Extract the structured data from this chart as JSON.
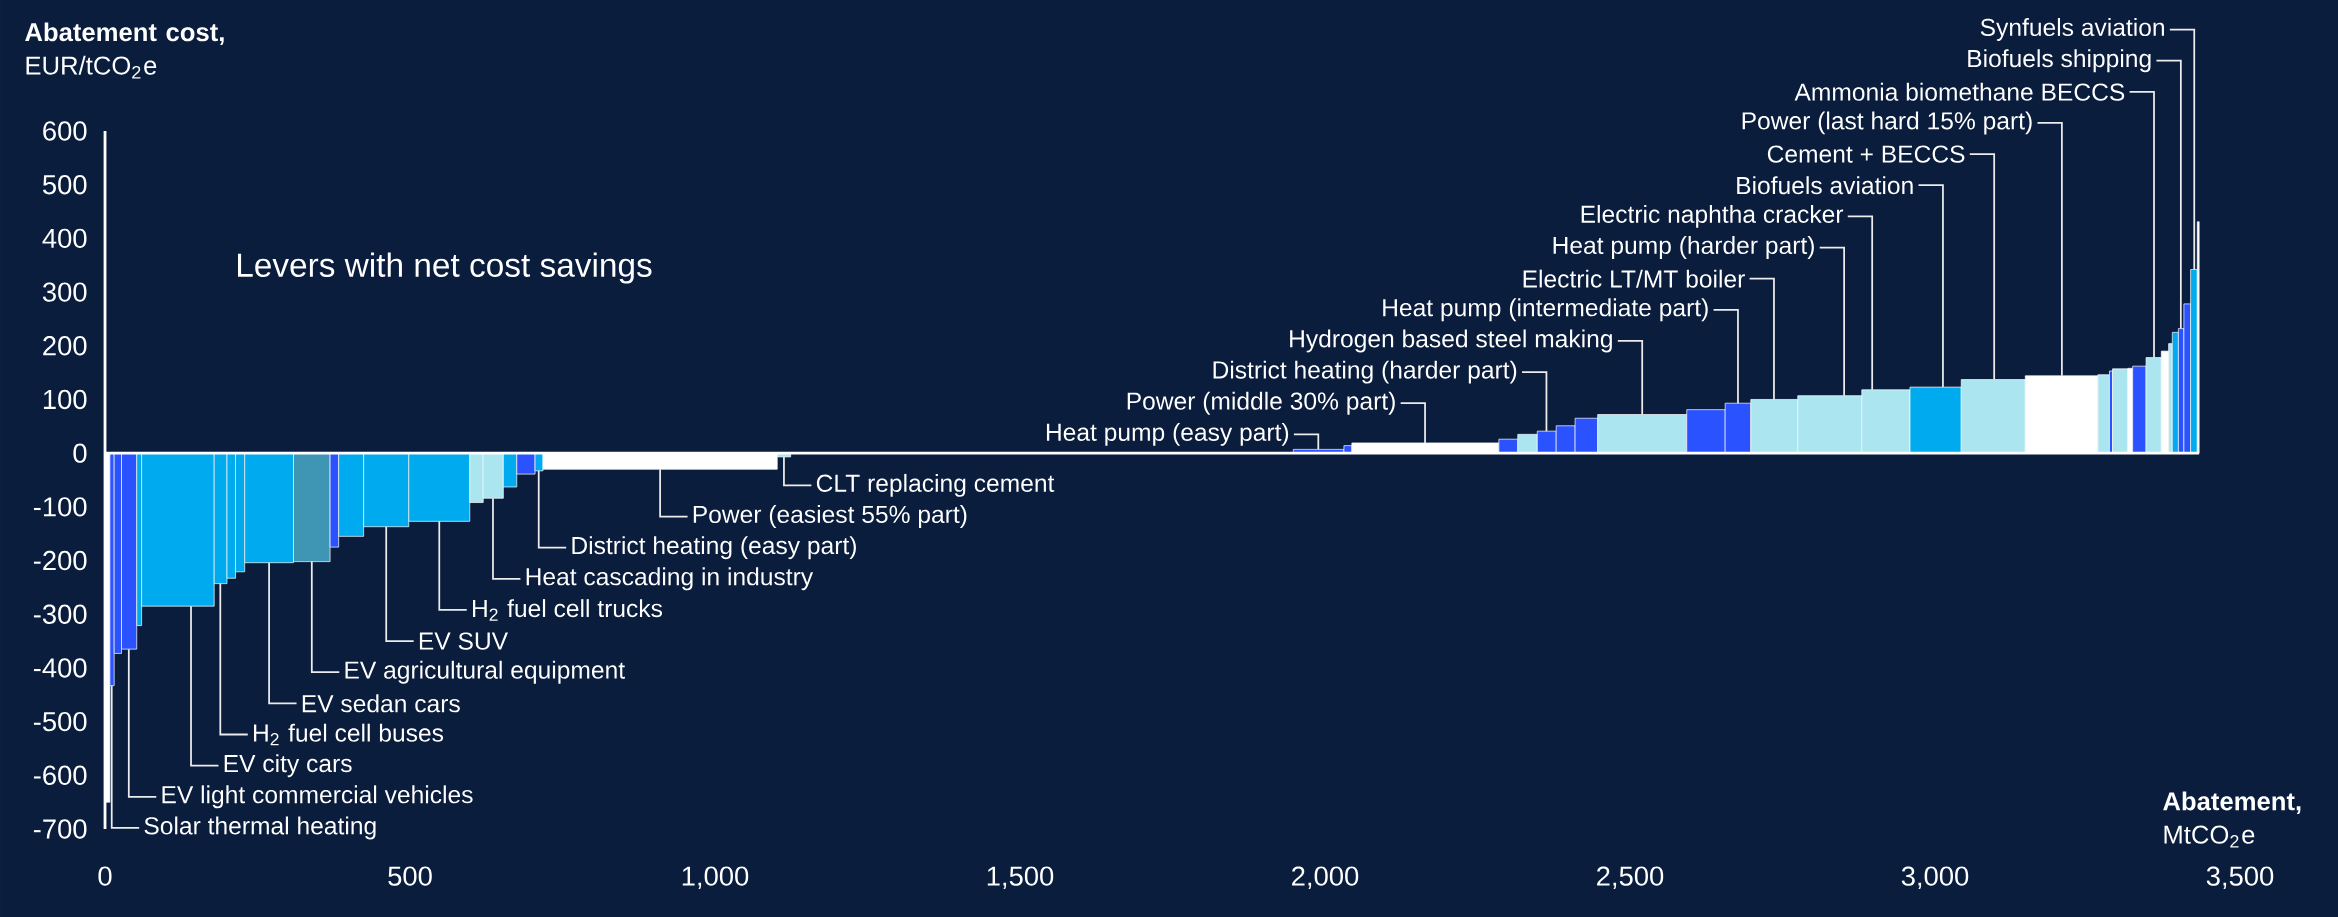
{
  "chart_data": {
    "type": "histogram",
    "xlabel": "**Abatement,** MtCO$_{2}$e",
    "ylabel": "**Abatement cost,** EUR/tCO$_{2}$e",
    "xlim": [
      0,
      3500
    ],
    "ylim": [
      -700,
      600
    ],
    "xticks": [
      0,
      500,
      {
        "value": 1000,
        "label": "1,000"
      },
      {
        "value": 1500,
        "label": "1,500"
      },
      {
        "value": 2000,
        "label": "2,000"
      },
      {
        "value": 2500,
        "label": "2,500"
      },
      {
        "value": 3000,
        "label": "3,000"
      },
      {
        "value": 3500,
        "label": "3,500"
      }
    ],
    "yticks": [
      -700,
      -600,
      -500,
      -400,
      -300,
      -200,
      -100,
      0,
      100,
      200,
      300,
      400,
      500,
      600
    ],
    "bins": [
      0,
      8,
      15,
      27,
      52,
      60,
      179,
      200,
      214,
      229,
      309,
      369,
      383,
      424,
      498,
      598,
      620,
      653,
      675,
      705,
      718,
      1102,
      1124,
      1948,
      2031,
      2044,
      2285,
      2316,
      2348,
      2379,
      2410,
      2447,
      2593,
      2656,
      2698,
      2775,
      2880,
      2959,
      3043,
      3148,
      3267,
      3286,
      3291,
      3316,
      3324,
      3346,
      3371,
      3383,
      3389,
      3399,
      3408,
      3419,
      3430,
      3433
    ],
    "values": [
      -650,
      -433,
      -373,
      -365,
      -321,
      -285,
      -243,
      -233,
      -221,
      -204,
      -202,
      -175,
      -155,
      -137,
      -127,
      -92,
      -84,
      -63,
      -39,
      -33,
      -30,
      -7,
      0,
      7,
      14,
      19,
      26,
      35,
      41,
      51,
      65,
      72,
      81,
      93,
      100,
      107,
      118,
      123,
      137,
      144,
      146,
      153,
      157,
      158,
      162,
      178,
      190,
      204,
      225,
      232,
      278,
      342,
      431
    ],
    "colors": [
      "#ffffff",
      "#2a52ff",
      "#2a52ff",
      "#2a52ff",
      "#00aaee",
      "#00aaee",
      "#00aaee",
      "#00aaee",
      "#00aaee",
      "#00aaee",
      "#3f96b4",
      "#2a52ff",
      "#00aaee",
      "#00aaee",
      "#00aaee",
      "#abe5ef",
      "#abe5ef",
      "#00aaee",
      "#2a52ff",
      "#00aaee",
      "#ffffff",
      "#abe5ef",
      "#abe5ef",
      "#2a52ff",
      "#2a52ff",
      "#ffffff",
      "#2a52ff",
      "#abe5ef",
      "#2a52ff",
      "#2a52ff",
      "#2a52ff",
      "#abe5ef",
      "#2a52ff",
      "#2a52ff",
      "#abe5ef",
      "#abe5ef",
      "#abe5ef",
      "#00aaee",
      "#abe5ef",
      "#ffffff",
      "#abe5ef",
      "#2a52ff",
      "#abe5ef",
      "#ffffff",
      "#2a52ff",
      "#abe5ef",
      "#ffffff",
      "#abe5ef",
      "#00aaee",
      "#2a52ff",
      "#2a52ff",
      "#00aaee",
      "#ffffff"
    ],
    "annotations": [
      "Levers with net cost savings",
      {
        "text": "CLT replacing cement",
        "x": 1113,
        "y": -7
      },
      {
        "text": "Power (easiest 55% part)",
        "x": 910,
        "y": -30
      },
      {
        "text": "District heating (easy part)",
        "x": 711,
        "y": -33
      },
      {
        "text": "Heat cascading in industry",
        "x": 636,
        "y": -84
      },
      {
        "text": "H$_{2}$ fuel cell trucks",
        "x": 548,
        "y": -127
      },
      {
        "text": "EV SUV",
        "x": 461,
        "y": -137
      },
      {
        "text": "EV agricultural equipment",
        "x": 339,
        "y": -202
      },
      {
        "text": "EV sedan cars",
        "x": 269,
        "y": -204
      },
      {
        "text": "H$_{2}$ fuel cell buses",
        "x": 189,
        "y": -243
      },
      {
        "text": "EV city cars",
        "x": 141,
        "y": -285
      },
      {
        "text": "EV light commercial vehicles",
        "x": 39,
        "y": -365
      },
      {
        "text": "Solar thermal heating",
        "x": 11,
        "y": -433
      },
      {
        "text": "Heat pump (easy part)",
        "x": 1989,
        "y": 7
      },
      {
        "text": "Power (middle 30% part)",
        "x": 2164,
        "y": 19
      },
      {
        "text": "District heating (harder part)",
        "x": 2363,
        "y": 41
      },
      {
        "text": "Hydrogen based steel making",
        "x": 2520,
        "y": 72
      },
      {
        "text": "Heat pump (intermediate part)",
        "x": 2677,
        "y": 93
      },
      {
        "text": "Electric LT/MT boiler",
        "x": 2736,
        "y": 100
      },
      {
        "text": "Heat pump (harder part)",
        "x": 2851,
        "y": 107
      },
      {
        "text": "Electric naphtha cracker",
        "x": 2897,
        "y": 118
      },
      {
        "text": "Biofuels aviation",
        "x": 3013,
        "y": 123
      },
      {
        "text": "Cement + BECCS",
        "x": 3097,
        "y": 137
      },
      {
        "text": "Power (last hard 15% part)",
        "x": 3208,
        "y": 144
      },
      {
        "text": "Ammonia biomethane BECCS",
        "x": 3359,
        "y": 178
      },
      {
        "text": "Biofuels shipping",
        "x": 3403,
        "y": 232
      },
      {
        "text": "Synfuels aviation",
        "x": 3425,
        "y": 342
      }
    ]
  }
}
